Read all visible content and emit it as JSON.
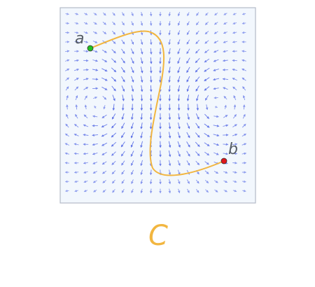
{
  "diagram": {
    "point_a": {
      "label": "a",
      "color": "#22c322"
    },
    "point_b": {
      "label": "b",
      "color": "#e0161b"
    },
    "curve": {
      "label": "C",
      "color": "#f2b640"
    },
    "field": {
      "arrow_color": "#5a6ee6",
      "panel_fill": "#f2f7fd",
      "panel_border": "#b3bac7"
    }
  }
}
